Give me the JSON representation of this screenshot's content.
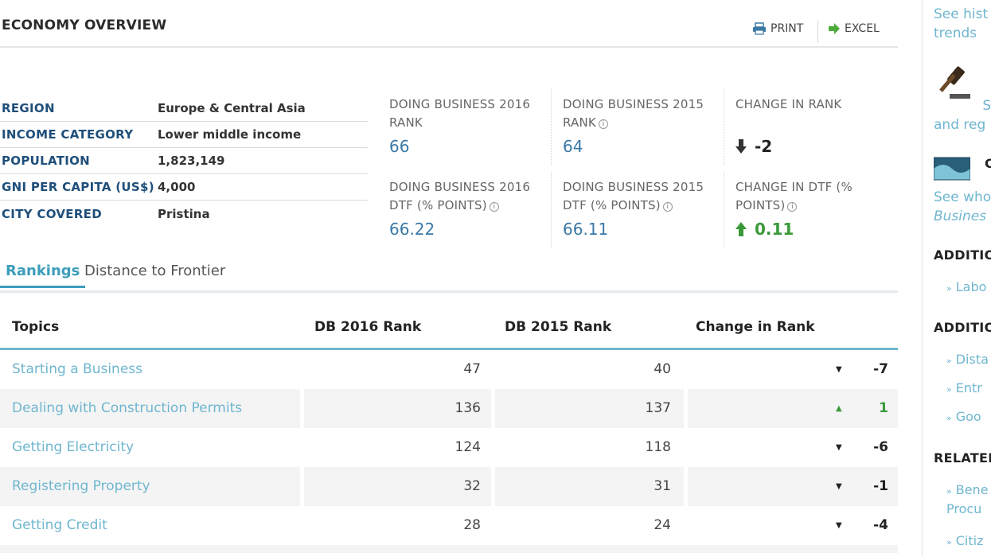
{
  "header": {
    "title": "ECONOMY OVERVIEW",
    "print_label": "PRINT",
    "excel_label": "EXCEL"
  },
  "info": [
    {
      "label": "REGION",
      "value": "Europe & Central Asia"
    },
    {
      "label": "INCOME CATEGORY",
      "value": "Lower middle income"
    },
    {
      "label": "POPULATION",
      "value": "1,823,149"
    },
    {
      "label": "GNI PER CAPITA (US$)",
      "value": "4,000"
    },
    {
      "label": "CITY COVERED",
      "value": "Pristina"
    }
  ],
  "stats": {
    "db2016_rank": {
      "label": "DOING BUSINESS 2016 RANK",
      "value": "66"
    },
    "db2015_rank": {
      "label": "DOING BUSINESS 2015 RANK",
      "value": "64"
    },
    "change_rank": {
      "label": "CHANGE IN RANK",
      "value": "-2"
    },
    "db2016_dtf": {
      "label": "DOING BUSINESS 2016 DTF (% POINTS)",
      "value": "66.22"
    },
    "db2015_dtf": {
      "label": "DOING BUSINESS 2015 DTF (% POINTS)",
      "value": "66.11"
    },
    "change_dtf": {
      "label": "CHANGE IN DTF (% POINTS)",
      "value": "0.11"
    }
  },
  "tabs": {
    "rankings": "Rankings",
    "dtf": "Distance to Frontier"
  },
  "table": {
    "headers": {
      "topics": "Topics",
      "db2016": "DB 2016 Rank",
      "db2015": "DB 2015 Rank",
      "change": "Change in Rank"
    },
    "rows": [
      {
        "topic": "Starting a Business",
        "db2016": "47",
        "db2015": "40",
        "change": "-7"
      },
      {
        "topic": "Dealing with Construction Permits",
        "db2016": "136",
        "db2015": "137",
        "change": "1"
      },
      {
        "topic": "Getting Electricity",
        "db2016": "124",
        "db2015": "118",
        "change": "-6"
      },
      {
        "topic": "Registering Property",
        "db2016": "32",
        "db2015": "31",
        "change": "-1"
      },
      {
        "topic": "Getting Credit",
        "db2016": "28",
        "db2015": "24",
        "change": "-4"
      }
    ]
  },
  "sidebar": {
    "link1_line1": "See hist",
    "link1_line2": "trends",
    "partial1": " S",
    "link2": "and reg",
    "partial2": "C",
    "link3_line1": "See who",
    "link3_line2": "Busines",
    "head1": "ADDITIO",
    "item1": "Labo",
    "head2": "ADDITIO",
    "item2": "Dista",
    "item3": "Entr",
    "item4": "Goo",
    "head3": "RELATEI",
    "item5_line1": "Bene",
    "item5_line2": "Procu",
    "item6": "Citiz"
  },
  "colors": {
    "accent": "#3c9dbb",
    "link": "#6fb6cf",
    "label_navy": "#1f4f7a",
    "positive": "#3a9a3a"
  },
  "icons": [
    "print-icon",
    "excel-arrow-icon",
    "info-icon",
    "down-arrow-icon",
    "up-arrow-icon",
    "gavel-icon",
    "banknote-icon"
  ]
}
